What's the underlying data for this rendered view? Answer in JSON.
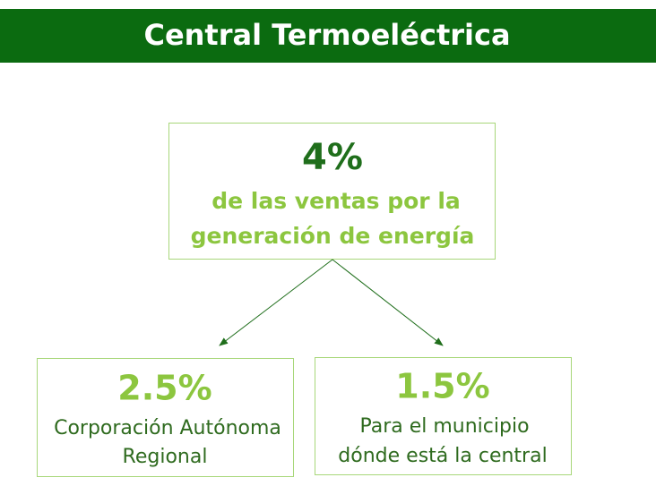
{
  "header": {
    "title": "Central Termoeléctrica"
  },
  "nodes": [
    {
      "value": "4%",
      "lines": [
        "de las ventas por la",
        "generación de energía"
      ]
    },
    {
      "value": "2.5%",
      "lines": [
        "Corporación Autónoma",
        "Regional"
      ]
    },
    {
      "value": "1.5%",
      "lines": [
        "Para el municipio",
        "dónde está la central"
      ]
    }
  ]
}
